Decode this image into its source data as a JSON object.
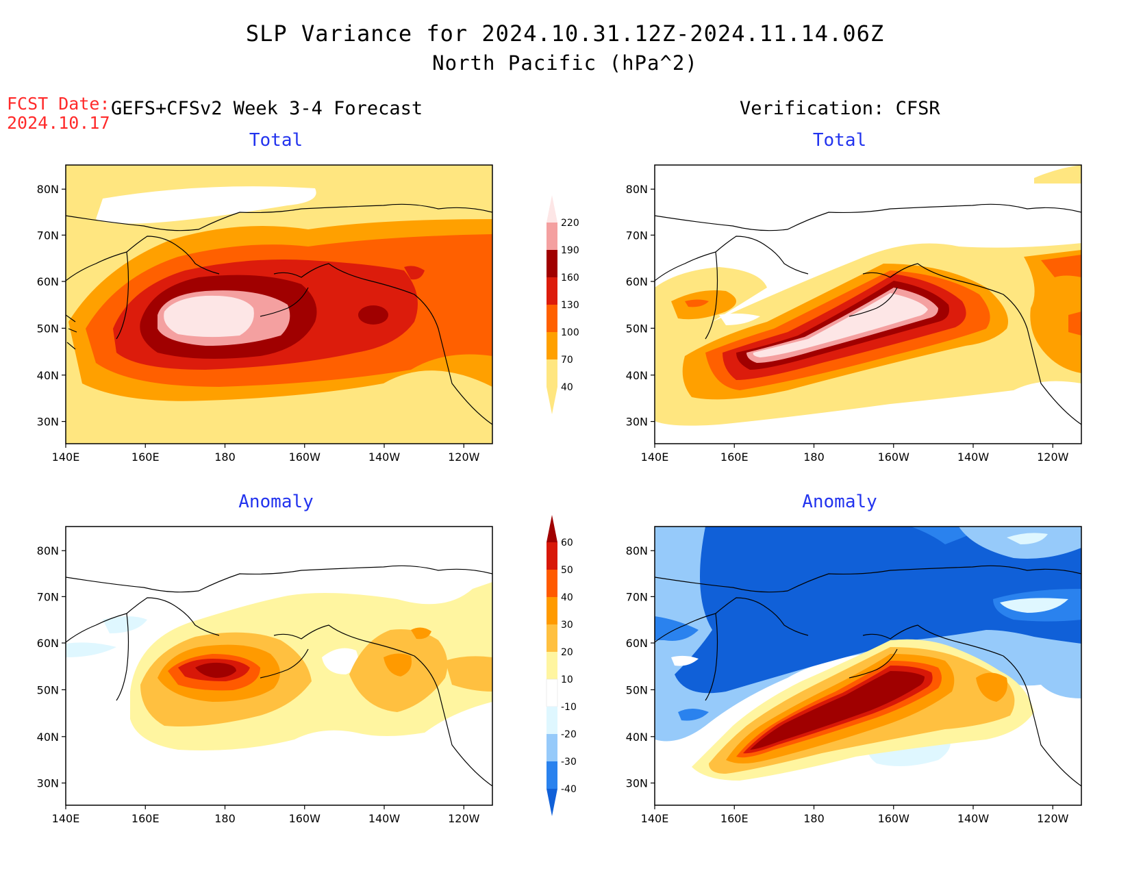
{
  "header": {
    "title": "SLP Variance for 2024.10.31.12Z-2024.11.14.06Z",
    "subtitle": "North Pacific (hPa^2)",
    "fcst_label": "FCST Date:",
    "fcst_date": "2024.10.17",
    "left_heading": "GEFS+CFSv2 Week 3-4 Forecast",
    "right_heading": "Verification: CFSR"
  },
  "panels": [
    {
      "id": "forecast-total",
      "title": "Total"
    },
    {
      "id": "verification-total",
      "title": "Total"
    },
    {
      "id": "forecast-anomaly",
      "title": "Anomaly"
    },
    {
      "id": "verification-anomaly",
      "title": "Anomaly"
    }
  ],
  "axes": {
    "lon_labels": [
      "140E",
      "160E",
      "180",
      "160W",
      "140W",
      "120W"
    ],
    "lat_labels": [
      "80N",
      "70N",
      "60N",
      "50N",
      "40N",
      "30N"
    ]
  },
  "colorbars": {
    "total": {
      "levels": [
        "40",
        "70",
        "100",
        "130",
        "160",
        "190",
        "220"
      ],
      "colors": [
        "#ffe680",
        "#ffa000",
        "#ff6000",
        "#dc1c0c",
        "#a00000",
        "#f4a0a0",
        "#fde6e6"
      ]
    },
    "anomaly": {
      "levels": [
        "-40",
        "-30",
        "-20",
        "-10",
        "10",
        "20",
        "30",
        "40",
        "50",
        "60"
      ],
      "colors": [
        "#1060d8",
        "#2a82ee",
        "#96cafa",
        "#dff7ff",
        "#ffffff",
        "#fff5a0",
        "#ffc040",
        "#ff9a00",
        "#ff5a00",
        "#d81808",
        "#a00000"
      ]
    }
  },
  "colors": {
    "title_text": "#000000",
    "fcst_text": "#ff2a2a",
    "panel_title": "#2233ee"
  }
}
